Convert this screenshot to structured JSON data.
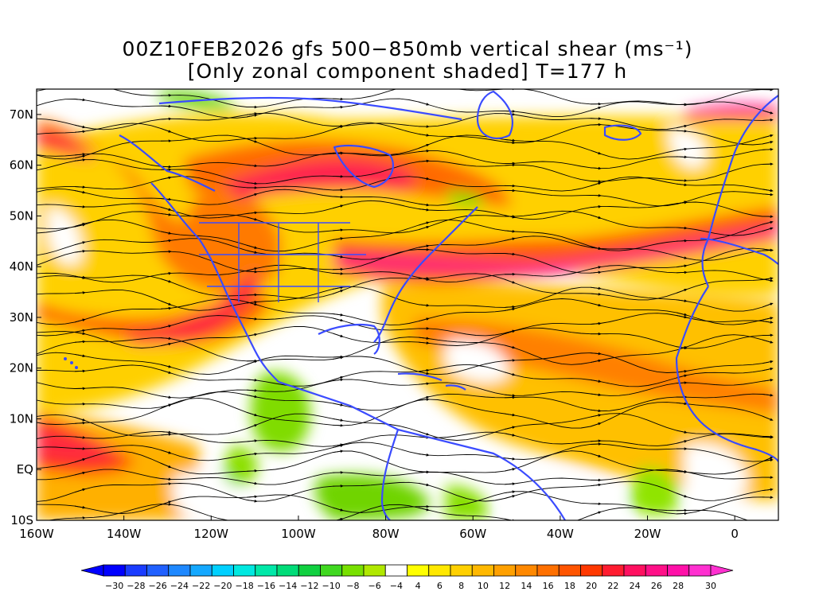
{
  "title": {
    "line1": "00Z10FEB2026 gfs 500−850mb vertical shear (ms⁻¹)",
    "line2": "[Only zonal component shaded] T=177 h"
  },
  "map": {
    "lon_range": [
      -160,
      10
    ],
    "lat_range": [
      -10,
      75
    ],
    "lon_labels": [
      "160W",
      "140W",
      "120W",
      "100W",
      "80W",
      "60W",
      "40W",
      "20W",
      "0"
    ],
    "lon_values": [
      -160,
      -140,
      -120,
      -100,
      -80,
      -60,
      -40,
      -20,
      0
    ],
    "lat_labels": [
      "70N",
      "60N",
      "50N",
      "40N",
      "30N",
      "20N",
      "10N",
      "EQ",
      "10S"
    ],
    "lat_values": [
      70,
      60,
      50,
      40,
      30,
      20,
      10,
      0,
      -10
    ],
    "coastline_color": "#3a4bff",
    "streamline_color": "#000000"
  },
  "colorbar": {
    "labels": [
      "−30",
      "−28",
      "−26",
      "−24",
      "−22",
      "−20",
      "−18",
      "−16",
      "−14",
      "−12",
      "−10",
      "−8",
      "−6",
      "−4",
      "4",
      "6",
      "8",
      "10",
      "12",
      "14",
      "16",
      "18",
      "20",
      "22",
      "24",
      "26",
      "28",
      "30"
    ],
    "colors": [
      "#0000ff",
      "#1a3cff",
      "#2060ff",
      "#1e88ff",
      "#14a8ff",
      "#00d0ff",
      "#00e8e0",
      "#00e8a8",
      "#00dc78",
      "#10d040",
      "#40d820",
      "#78e000",
      "#b0e800",
      "#ffffff",
      "#ffff00",
      "#ffe800",
      "#ffd000",
      "#ffb800",
      "#ffa000",
      "#ff8800",
      "#ff7000",
      "#ff5400",
      "#ff3800",
      "#ff1c30",
      "#ff1060",
      "#ff1088",
      "#ff10a8",
      "#ff30d0"
    ]
  }
}
